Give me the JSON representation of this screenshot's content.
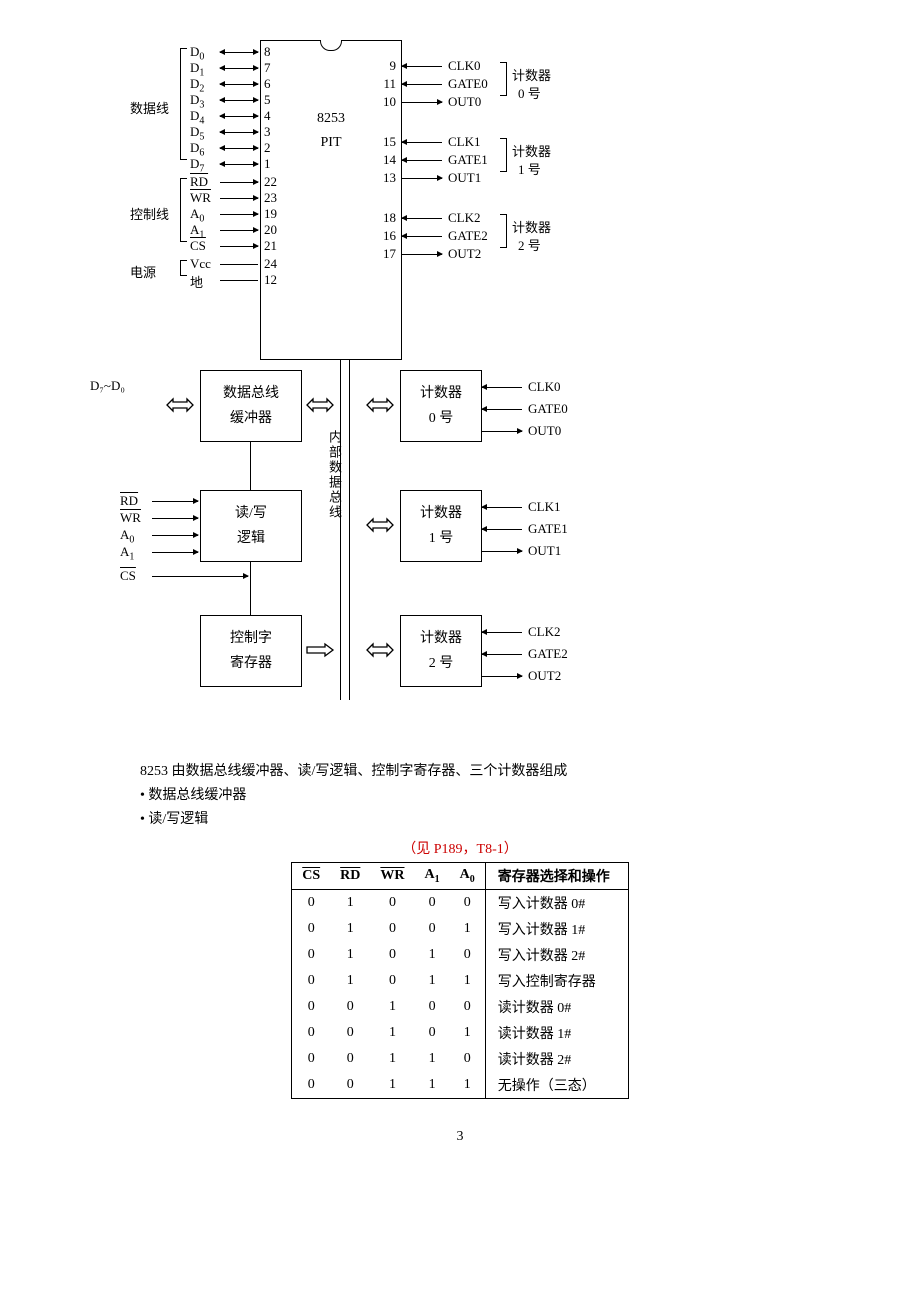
{
  "chip": {
    "name": "8253",
    "subtitle": "PIT",
    "left_groups": [
      {
        "label": "数据线",
        "pins": [
          {
            "sig": "D",
            "sub": "0",
            "num": "8",
            "arrow": "bi"
          },
          {
            "sig": "D",
            "sub": "1",
            "num": "7",
            "arrow": "bi"
          },
          {
            "sig": "D",
            "sub": "2",
            "num": "6",
            "arrow": "bi"
          },
          {
            "sig": "D",
            "sub": "3",
            "num": "5",
            "arrow": "bi"
          },
          {
            "sig": "D",
            "sub": "4",
            "num": "4",
            "arrow": "bi"
          },
          {
            "sig": "D",
            "sub": "5",
            "num": "3",
            "arrow": "bi"
          },
          {
            "sig": "D",
            "sub": "6",
            "num": "2",
            "arrow": "bi"
          },
          {
            "sig": "D",
            "sub": "7",
            "num": "1",
            "arrow": "bi"
          }
        ]
      },
      {
        "label": "控制线",
        "pins": [
          {
            "sig": "RD",
            "over": true,
            "num": "22",
            "arrow": "in"
          },
          {
            "sig": "WR",
            "over": true,
            "num": "23",
            "arrow": "in"
          },
          {
            "sig": "A",
            "sub": "0",
            "num": "19",
            "arrow": "in"
          },
          {
            "sig": "A",
            "sub": "1",
            "num": "20",
            "arrow": "in"
          },
          {
            "sig": "CS",
            "over": true,
            "num": "21",
            "arrow": "in"
          }
        ]
      },
      {
        "label": "电源",
        "pins": [
          {
            "sig": "Vcc",
            "num": "24",
            "arrow": "none"
          },
          {
            "sig": "地",
            "num": "12",
            "arrow": "none"
          }
        ]
      }
    ],
    "right_groups": [
      {
        "label_top": "计数器",
        "label_bot": "0 号",
        "pins": [
          {
            "num": "9",
            "sig": "CLK0",
            "arrow": "in"
          },
          {
            "num": "11",
            "sig": "GATE0",
            "arrow": "in"
          },
          {
            "num": "10",
            "sig": "OUT0",
            "arrow": "out"
          }
        ]
      },
      {
        "label_top": "计数器",
        "label_bot": "1 号",
        "pins": [
          {
            "num": "15",
            "sig": "CLK1",
            "arrow": "in"
          },
          {
            "num": "14",
            "sig": "GATE1",
            "arrow": "in"
          },
          {
            "num": "13",
            "sig": "OUT1",
            "arrow": "out"
          }
        ]
      },
      {
        "label_top": "计数器",
        "label_bot": "2 号",
        "pins": [
          {
            "num": "18",
            "sig": "CLK2",
            "arrow": "in"
          },
          {
            "num": "16",
            "sig": "GATE2",
            "arrow": "in"
          },
          {
            "num": "17",
            "sig": "OUT2",
            "arrow": "out"
          }
        ]
      }
    ]
  },
  "block": {
    "d_label": "D₇~D₀",
    "left_box1": {
      "l1": "数据总线",
      "l2": "缓冲器"
    },
    "left_box2": {
      "l1": "读/写",
      "l2": "逻辑"
    },
    "left_box3": {
      "l1": "控制字",
      "l2": "寄存器"
    },
    "left_inputs": [
      {
        "sig": "RD",
        "over": true
      },
      {
        "sig": "WR",
        "over": true
      },
      {
        "sig": "A",
        "sub": "0"
      },
      {
        "sig": "A",
        "sub": "1"
      },
      {
        "sig": "CS",
        "over": true
      }
    ],
    "bus_label": "内部数据总线",
    "counters": [
      {
        "l1": "计数器",
        "l2": "0 号",
        "sigs": [
          "CLK0",
          "GATE0",
          "OUT0"
        ]
      },
      {
        "l1": "计数器",
        "l2": "1 号",
        "sigs": [
          "CLK1",
          "GATE1",
          "OUT1"
        ]
      },
      {
        "l1": "计数器",
        "l2": "2 号",
        "sigs": [
          "CLK2",
          "GATE2",
          "OUT2"
        ]
      }
    ]
  },
  "text": {
    "desc": "8253 由数据总线缓冲器、读/写逻辑、控制字寄存器、三个计数器组成",
    "bullet1": "• 数据总线缓冲器",
    "bullet2": "• 读/写逻辑",
    "red": "（见 P189，T8-1）"
  },
  "table": {
    "headers": [
      "CS",
      "RD",
      "WR",
      "A₁",
      "A₀",
      "寄存器选择和操作"
    ],
    "header_over": [
      true,
      true,
      true,
      false,
      false,
      false
    ],
    "rows": [
      [
        "0",
        "1",
        "0",
        "0",
        "0",
        "写入计数器 0#"
      ],
      [
        "0",
        "1",
        "0",
        "0",
        "1",
        "写入计数器 1#"
      ],
      [
        "0",
        "1",
        "0",
        "1",
        "0",
        "写入计数器 2#"
      ],
      [
        "0",
        "1",
        "0",
        "1",
        "1",
        "写入控制寄存器"
      ],
      [
        "0",
        "0",
        "1",
        "0",
        "0",
        "读计数器 0#"
      ],
      [
        "0",
        "0",
        "1",
        "0",
        "1",
        "读计数器 1#"
      ],
      [
        "0",
        "0",
        "1",
        "1",
        "0",
        "读计数器 2#"
      ],
      [
        "0",
        "0",
        "1",
        "1",
        "1",
        "无操作（三态）"
      ]
    ]
  },
  "page": "3"
}
